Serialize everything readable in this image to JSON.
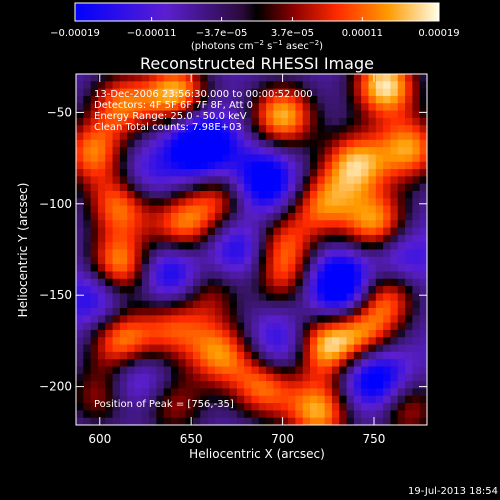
{
  "chart_data": {
    "type": "heatmap",
    "title": "Reconstructed RHESSI Image",
    "xlabel": "Heliocentric X (arcsec)",
    "ylabel": "Heliocentric Y (arcsec)",
    "xlim": [
      587,
      779
    ],
    "ylim": [
      -221,
      -29
    ],
    "xticks": [
      600,
      650,
      700,
      750
    ],
    "yticks": [
      -50,
      -100,
      -150,
      -200
    ],
    "colorbar": {
      "range": [
        -0.00019,
        0.00019
      ],
      "ticks": [
        "-0.00019",
        "-0.00011",
        "-3.7e-05",
        "3.7e-05",
        "0.00011",
        "0.00019"
      ],
      "tick_values": [
        -0.00019,
        -0.00011,
        -3.7e-05,
        3.7e-05,
        0.00011,
        0.00019
      ],
      "label": "(photons cm",
      "label_exp1": "-2",
      "label_mid": " s",
      "label_exp2": "-1",
      "label_mid2": " asec",
      "label_exp3": "-2",
      "label_end": ")"
    },
    "annotations": [
      "13-Dec-2006 23:56:30.000 to 00:00:52.000",
      "Detectors: 4F 5F 6F 7F 8F, Att 0",
      "Energy Range: 25.0 - 50.0 keV",
      "Clean    Total counts: 7.98E+03"
    ],
    "peak_text": "Position of Peak = [756,-35]",
    "peak": [
      756,
      -35
    ],
    "blobs": [
      {
        "x": 756,
        "y": -35,
        "v": 1.0
      },
      {
        "x": 770,
        "y": -70,
        "v": 0.8
      },
      {
        "x": 740,
        "y": -78,
        "v": 0.85
      },
      {
        "x": 642,
        "y": -40,
        "v": 0.9
      },
      {
        "x": 612,
        "y": -45,
        "v": 0.7
      },
      {
        "x": 700,
        "y": -52,
        "v": 0.9
      },
      {
        "x": 596,
        "y": -72,
        "v": 0.75
      },
      {
        "x": 612,
        "y": -100,
        "v": 0.85
      },
      {
        "x": 645,
        "y": -112,
        "v": 0.75
      },
      {
        "x": 666,
        "y": -97,
        "v": 0.6
      },
      {
        "x": 700,
        "y": -120,
        "v": 0.55
      },
      {
        "x": 722,
        "y": -100,
        "v": 0.7
      },
      {
        "x": 752,
        "y": -112,
        "v": 0.9
      },
      {
        "x": 610,
        "y": -135,
        "v": 0.95
      },
      {
        "x": 700,
        "y": -140,
        "v": 0.55
      },
      {
        "x": 660,
        "y": -147,
        "v": 0.5
      },
      {
        "x": 756,
        "y": -150,
        "v": 0.75
      },
      {
        "x": 612,
        "y": -175,
        "v": 0.85
      },
      {
        "x": 640,
        "y": -168,
        "v": 0.6
      },
      {
        "x": 666,
        "y": -182,
        "v": 0.75
      },
      {
        "x": 690,
        "y": -200,
        "v": 0.75
      },
      {
        "x": 722,
        "y": -178,
        "v": 0.9
      },
      {
        "x": 744,
        "y": -172,
        "v": 0.7
      },
      {
        "x": 600,
        "y": -205,
        "v": 0.5
      },
      {
        "x": 640,
        "y": -210,
        "v": 0.5
      },
      {
        "x": 720,
        "y": -214,
        "v": 0.85
      },
      {
        "x": 768,
        "y": -212,
        "v": 0.55
      },
      {
        "x": 655,
        "y": -68,
        "v": -0.85
      },
      {
        "x": 690,
        "y": -88,
        "v": -0.7
      },
      {
        "x": 622,
        "y": -88,
        "v": -0.4
      },
      {
        "x": 640,
        "y": -138,
        "v": -0.6
      },
      {
        "x": 600,
        "y": -150,
        "v": -0.55
      },
      {
        "x": 676,
        "y": -125,
        "v": -0.5
      },
      {
        "x": 732,
        "y": -145,
        "v": -0.9
      },
      {
        "x": 762,
        "y": -128,
        "v": -0.5
      },
      {
        "x": 700,
        "y": -178,
        "v": -0.5
      },
      {
        "x": 750,
        "y": -195,
        "v": -0.75
      },
      {
        "x": 620,
        "y": -195,
        "v": -0.45
      }
    ]
  },
  "footer": {
    "timestamp": "19-Jul-2013 18:54"
  }
}
